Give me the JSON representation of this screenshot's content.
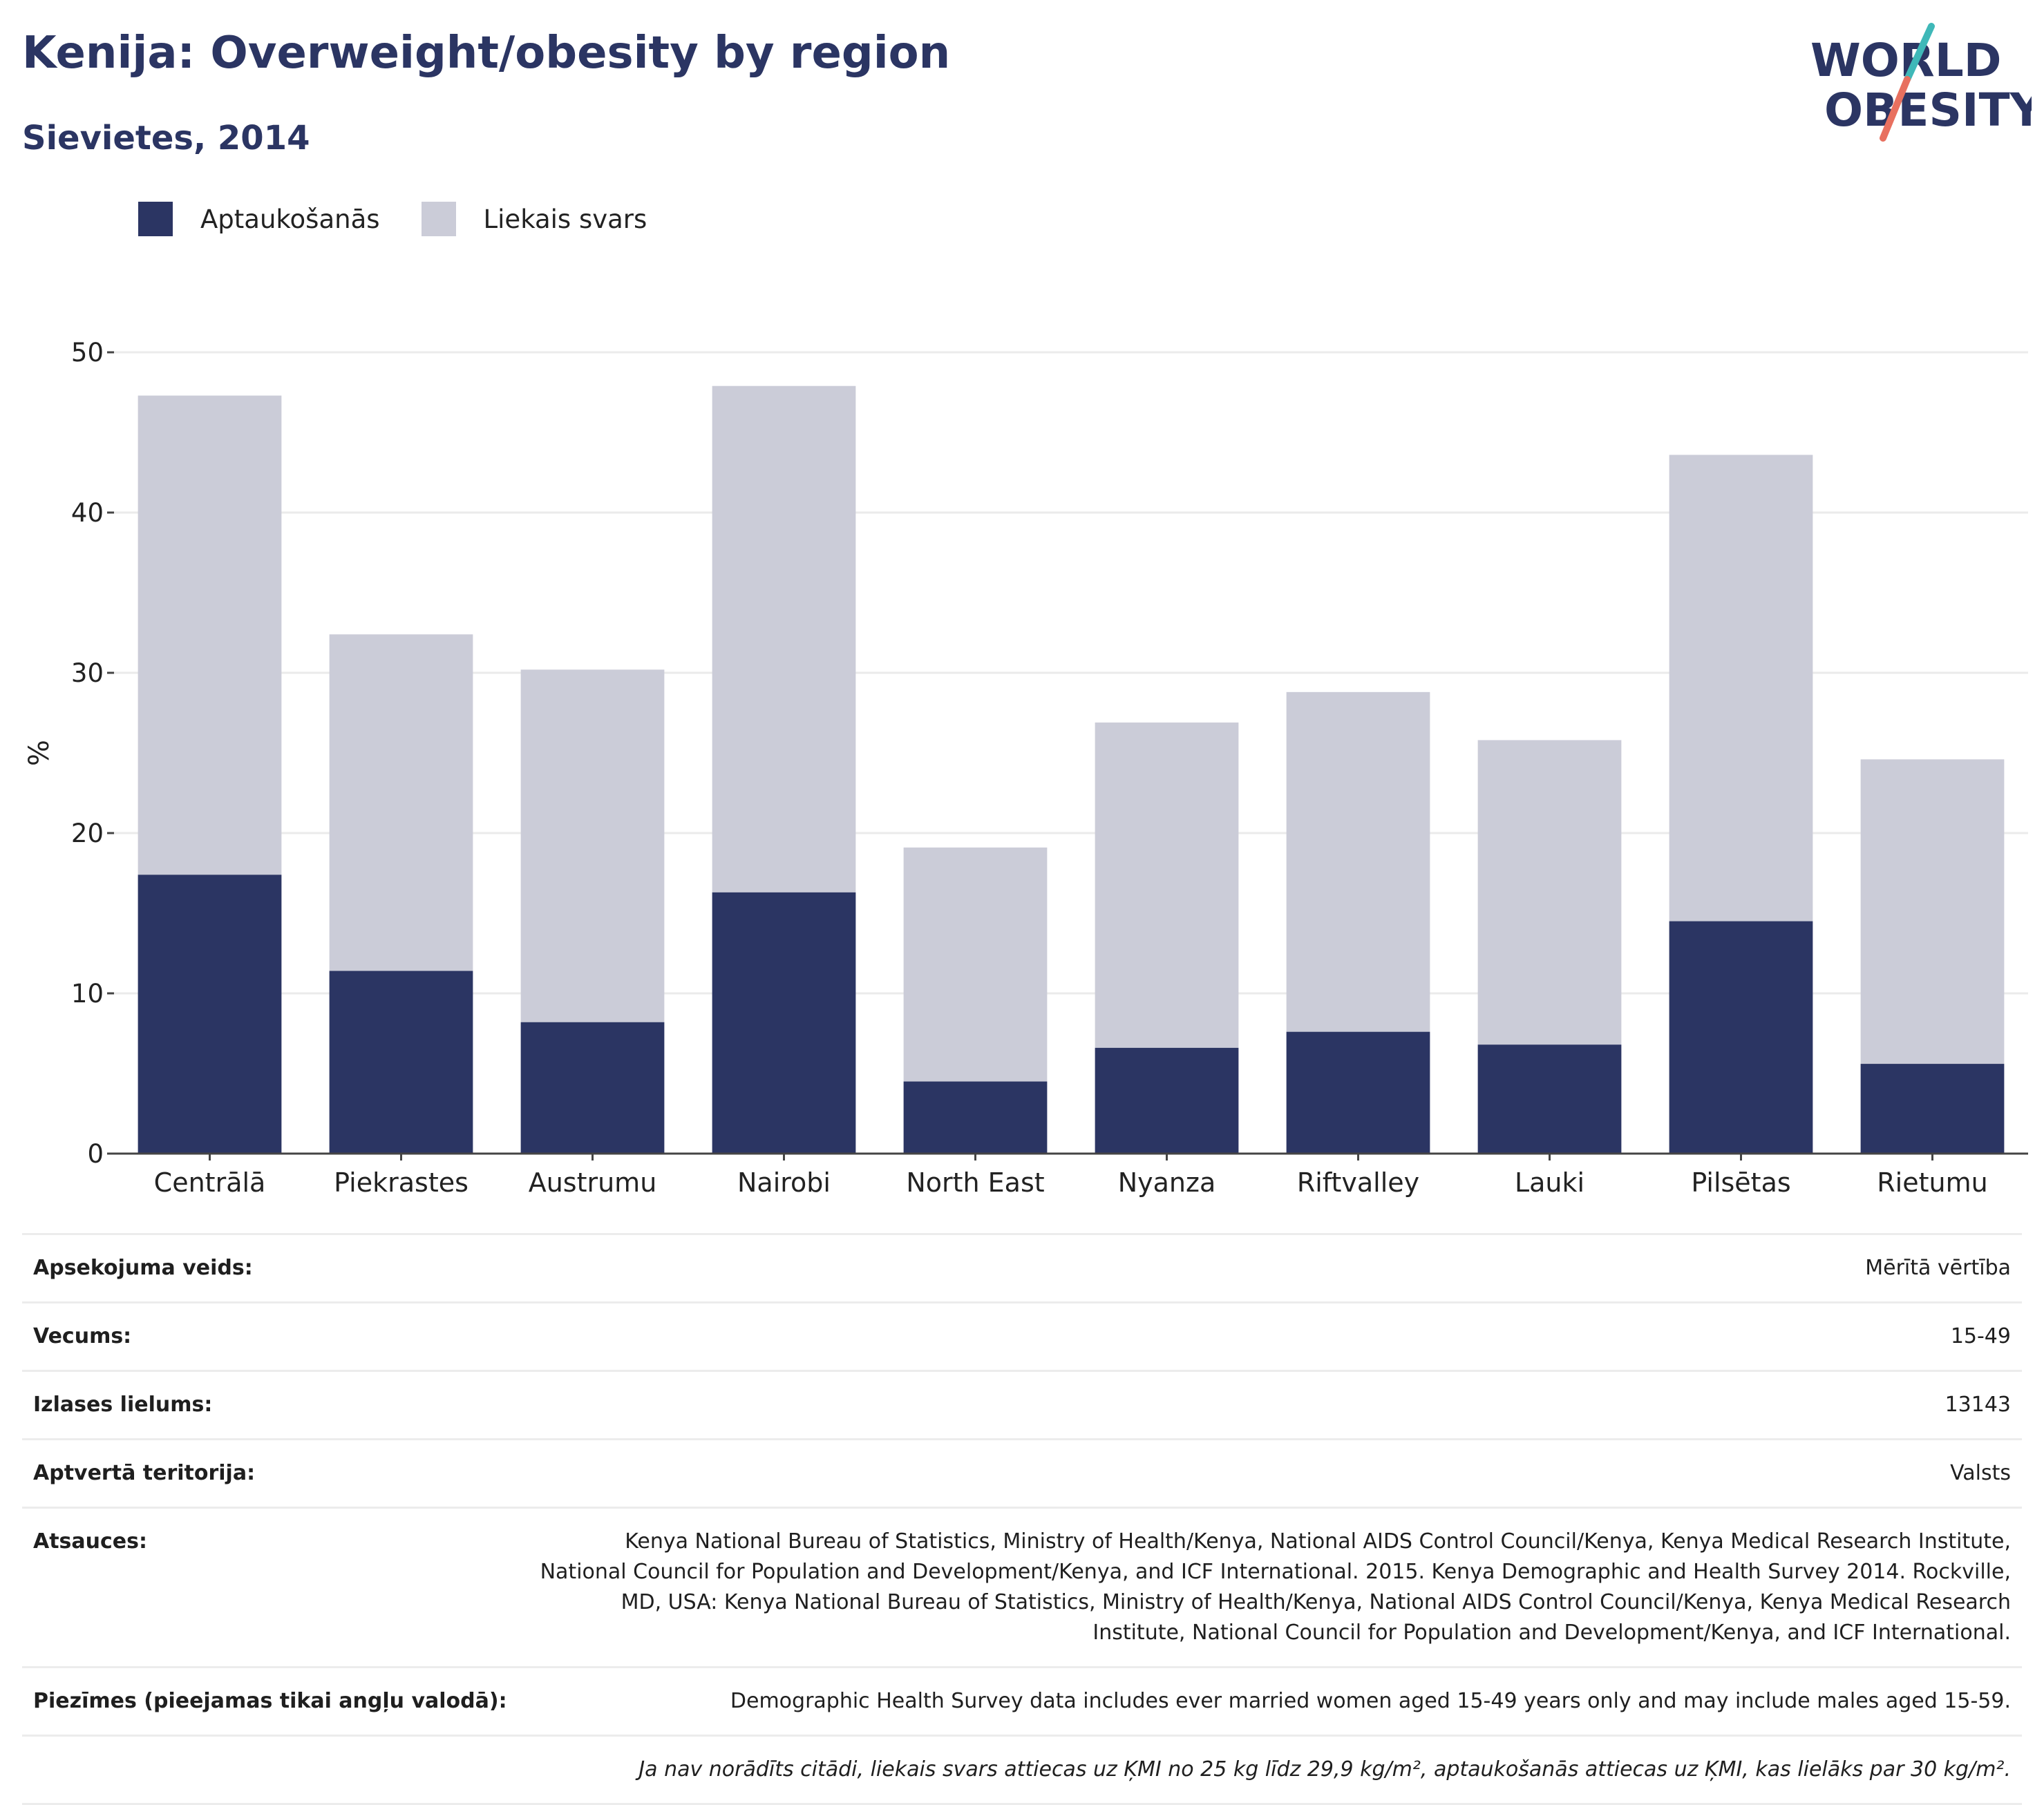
{
  "title": "Kenija: Overweight/obesity by region",
  "subtitle": "Sievietes, 2014",
  "logo": {
    "line1": "WORLD",
    "line2": "OBESITY"
  },
  "colors": {
    "obesity": "#2b3563",
    "overweight": "#cbccd8",
    "accent_teal": "#3fb8b8",
    "accent_red": "#e8705f"
  },
  "chart_data": {
    "type": "bar",
    "stacked": true,
    "categories": [
      "Centrālā",
      "Piekrastes",
      "Austrumu",
      "Nairobi",
      "North East",
      "Nyanza",
      "Riftvalley",
      "Lauki",
      "Pilsētas",
      "Rietumu"
    ],
    "series": [
      {
        "name": "Aptaukošanās",
        "values": [
          17.4,
          11.4,
          8.2,
          16.3,
          4.5,
          6.6,
          7.6,
          6.8,
          14.5,
          5.6
        ]
      },
      {
        "name": "Liekais svars",
        "values": [
          29.9,
          21.0,
          22.0,
          31.6,
          14.6,
          20.3,
          21.2,
          19.0,
          29.1,
          19.0
        ]
      }
    ],
    "totals": [
      47.3,
      32.4,
      30.2,
      47.9,
      19.1,
      26.9,
      28.8,
      25.8,
      43.6,
      24.6
    ],
    "ylabel": "%",
    "ylim": [
      0,
      50
    ],
    "yticks": [
      0,
      10,
      20,
      30,
      40,
      50
    ],
    "grid": true,
    "legend": "top-left"
  },
  "info": [
    {
      "label": "Apsekojuma veids:",
      "value": "Mērītā vērtība"
    },
    {
      "label": "Vecums:",
      "value": "15-49"
    },
    {
      "label": "Izlases lielums:",
      "value": "13143"
    },
    {
      "label": "Aptvertā teritorija:",
      "value": "Valsts"
    },
    {
      "label": "Atsauces:",
      "value": "Kenya National Bureau of Statistics, Ministry of Health/Kenya, National AIDS Control Council/Kenya, Kenya Medical Research Institute, National Council for Population and Development/Kenya, and ICF International. 2015. Kenya Demographic and Health Survey 2014. Rockville, MD, USA: Kenya National Bureau of Statistics, Ministry of Health/Kenya, National AIDS Control Council/Kenya, Kenya Medical Research Institute, National Council for Population and Development/Kenya, and ICF International."
    },
    {
      "label": "Piezīmes (pieejamas tikai angļu valodā):",
      "value": "Demographic Health Survey data includes ever married women aged 15-49 years only and may include males aged 15-59."
    }
  ],
  "footnote": "Ja nav norādīts citādi, liekais svars attiecas uz ĶMI no 25 kg līdz 29,9 kg/m², aptaukošanās attiecas uz ĶMI, kas lielāks par 30 kg/m²."
}
